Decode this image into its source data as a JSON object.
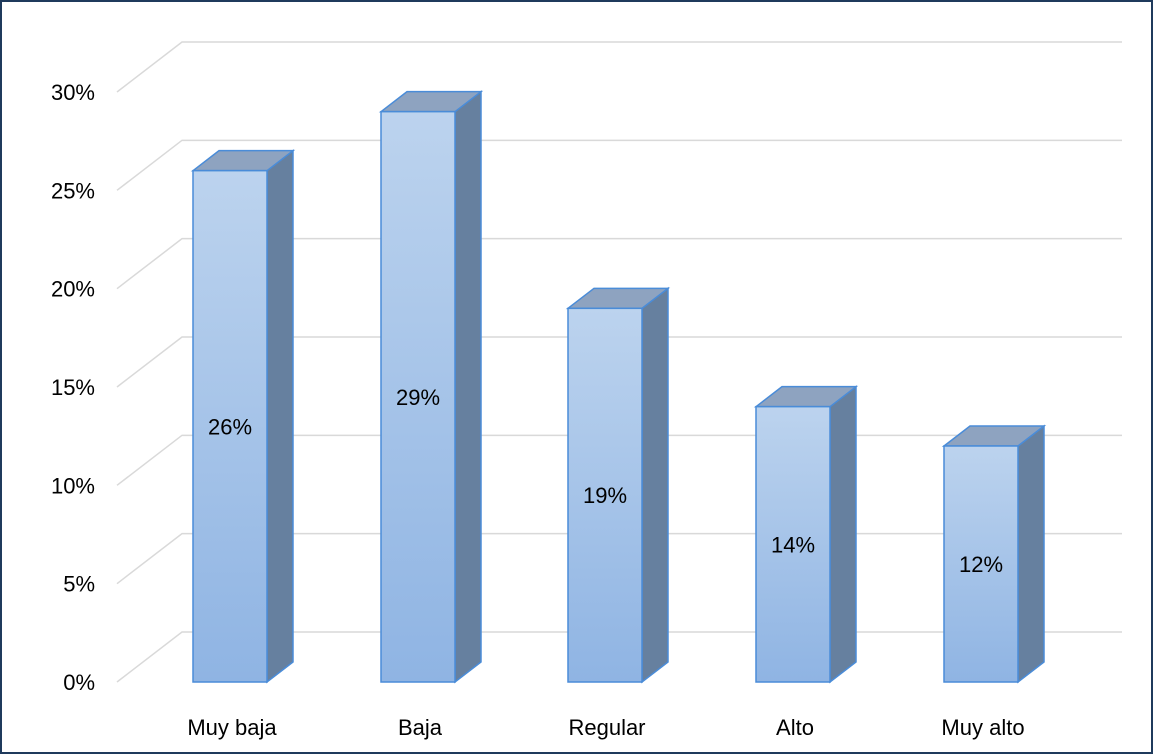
{
  "chart_data": {
    "type": "bar",
    "categories": [
      "Muy baja",
      "Baja",
      "Regular",
      "Alto",
      "Muy alto"
    ],
    "values": [
      26,
      29,
      19,
      14,
      12
    ],
    "value_labels": [
      "26%",
      "29%",
      "19%",
      "14%",
      "12%"
    ],
    "ylim": [
      0,
      30
    ],
    "yticks": [
      0,
      5,
      10,
      15,
      20,
      25,
      30
    ],
    "ytick_labels": [
      "0%",
      "5%",
      "10%",
      "15%",
      "20%",
      "25%",
      "30%"
    ],
    "grid": true,
    "style": "3d-column",
    "colors": {
      "bar_front_top": "#bcd3ee",
      "bar_front_bottom": "#8fb4e3",
      "bar_side": "#66809f",
      "bar_top": "#8ea3c0",
      "bar_outline": "#4a8cd8",
      "grid": "#d9d9d9",
      "border": "#1f3a5c"
    }
  }
}
